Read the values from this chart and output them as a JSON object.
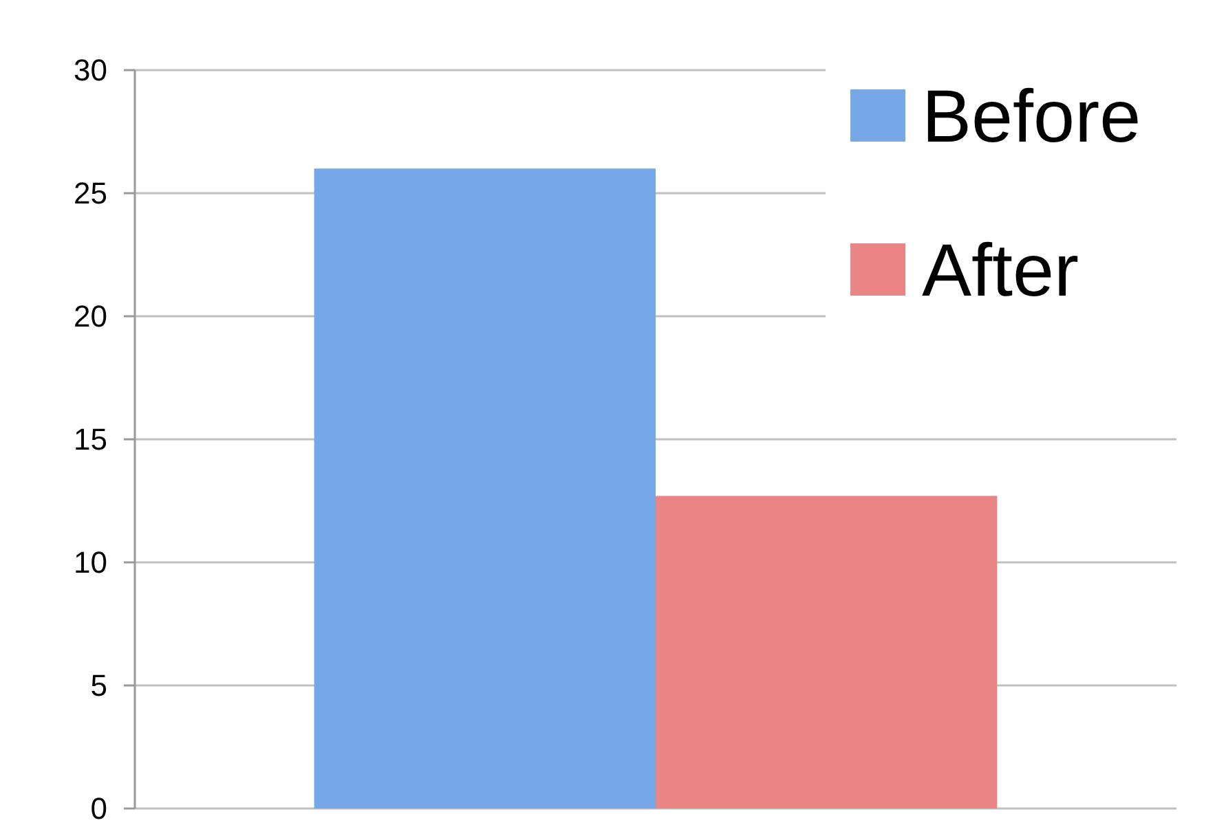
{
  "chart_data": {
    "type": "bar",
    "categories": [
      null
    ],
    "series": [
      {
        "name": "Before",
        "color": "#76a7e6",
        "values": [
          26
        ]
      },
      {
        "name": "After",
        "color": "#e98585",
        "values": [
          12.7
        ]
      }
    ],
    "ylim": [
      0,
      30
    ],
    "yticks": [
      0,
      5,
      10,
      15,
      20,
      25,
      30
    ],
    "grid": "y",
    "legend": "top right"
  }
}
